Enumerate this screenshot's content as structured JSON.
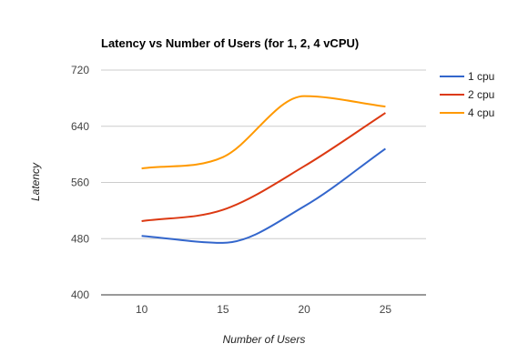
{
  "chart_data": {
    "type": "line",
    "title": "Latency vs Number of Users (for 1, 2, 4 vCPU)",
    "xlabel": "Number of Users",
    "ylabel": "Latency",
    "x": [
      10,
      15,
      20,
      25
    ],
    "xlim": [
      7.5,
      27.5
    ],
    "ylim": [
      400,
      720
    ],
    "yticks": [
      400,
      480,
      560,
      640,
      720
    ],
    "xticks": [
      10,
      15,
      20,
      25
    ],
    "grid": true,
    "smooth": true,
    "legend_position": "right",
    "series": [
      {
        "name": "1 cpu",
        "color": "#3366cc",
        "values": [
          484,
          474,
          526,
          608
        ]
      },
      {
        "name": "2 cpu",
        "color": "#dc3912",
        "values": [
          505,
          521,
          583,
          659
        ]
      },
      {
        "name": "4 cpu",
        "color": "#ff9900",
        "values": [
          580,
          596,
          683,
          668
        ]
      }
    ]
  }
}
